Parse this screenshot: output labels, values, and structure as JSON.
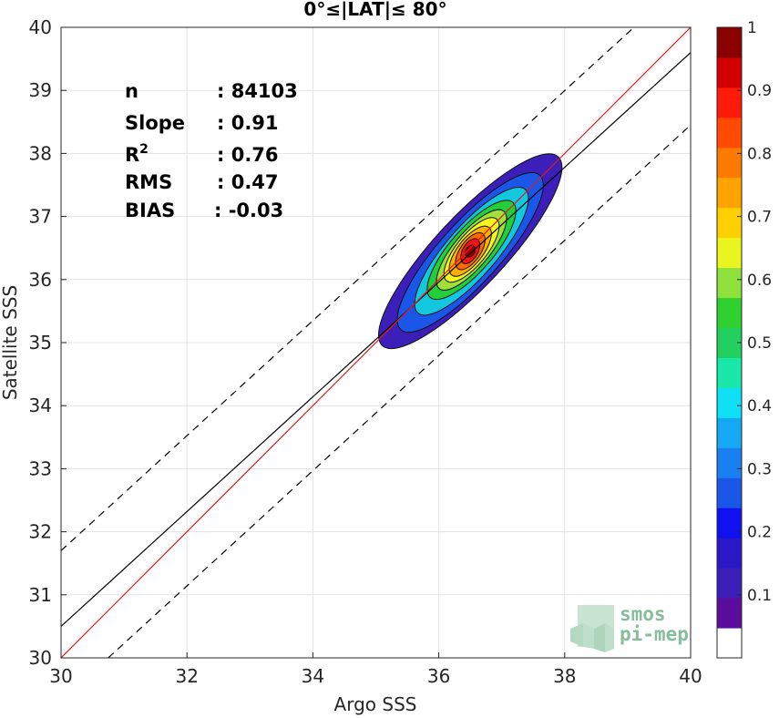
{
  "chart_data": {
    "type": "contour-scatter",
    "title": "0°≤|LAT|≤ 80°",
    "xlabel": "Argo SSS",
    "ylabel": "Satellite SSS",
    "xlim": [
      30,
      40
    ],
    "ylim": [
      30,
      40
    ],
    "xticks": [
      "30",
      "32",
      "34",
      "36",
      "38",
      "40"
    ],
    "yticks": [
      "30",
      "31",
      "32",
      "33",
      "34",
      "35",
      "36",
      "37",
      "38",
      "39",
      "40"
    ],
    "grid": true,
    "stats": [
      {
        "label": "n",
        "value": ": 84103"
      },
      {
        "label": "Slope",
        "value": ": 0.91"
      },
      {
        "label": "R",
        "sup": "2",
        "value": ": 0.76"
      },
      {
        "label": "RMS",
        "value": ": 0.47"
      },
      {
        "label": "BIAS",
        "value": ": -0.03"
      }
    ],
    "lines": {
      "one_to_one": {
        "x": [
          30,
          40
        ],
        "y": [
          30,
          40
        ],
        "color": "#e31a1c"
      },
      "regression": {
        "x": [
          30,
          40
        ],
        "y": [
          30.5,
          39.6
        ],
        "color": "#000000"
      },
      "upper_bound": {
        "x": [
          30,
          39.1
        ],
        "y": [
          31.7,
          40
        ],
        "dash": true
      },
      "lower_bound": {
        "x": [
          30.75,
          40
        ],
        "y": [
          30,
          38.45
        ],
        "dash": true
      }
    },
    "density": {
      "center": [
        36.5,
        36.45
      ],
      "levels": [
        {
          "level": 0.05,
          "half_major": 2.05,
          "half_minor": 0.56,
          "angle_deg": 47,
          "shift": [
            0.0,
            0.0
          ],
          "color": "#3b1fb8"
        },
        {
          "level": 0.2,
          "half_major": 1.65,
          "half_minor": 0.48,
          "angle_deg": 48,
          "shift": [
            0.0,
            -0.02
          ],
          "color": "#1a57e8"
        },
        {
          "level": 0.35,
          "half_major": 1.3,
          "half_minor": 0.4,
          "angle_deg": 49,
          "shift": [
            0.02,
            0.0
          ],
          "color": "#12c8e0"
        },
        {
          "level": 0.5,
          "half_major": 1.0,
          "half_minor": 0.34,
          "angle_deg": 49,
          "shift": [
            0.02,
            0.02
          ],
          "color": "#22cf3a"
        },
        {
          "level": 0.6,
          "half_major": 0.8,
          "half_minor": 0.28,
          "angle_deg": 50,
          "shift": [
            0.02,
            0.02
          ],
          "color": "#9fe03a"
        },
        {
          "level": 0.65,
          "half_major": 0.63,
          "half_minor": 0.24,
          "angle_deg": 51,
          "shift": [
            0.02,
            0.02
          ],
          "color": "#f5f51f"
        },
        {
          "level": 0.7,
          "half_major": 0.48,
          "half_minor": 0.2,
          "angle_deg": 52,
          "shift": [
            0.0,
            0.0
          ],
          "color": "#ffb000"
        },
        {
          "level": 0.8,
          "half_major": 0.34,
          "half_minor": 0.16,
          "angle_deg": 55,
          "shift": [
            0.0,
            0.0
          ],
          "color": "#ff6a00"
        },
        {
          "level": 0.9,
          "half_major": 0.22,
          "half_minor": 0.12,
          "angle_deg": 60,
          "shift": [
            0.0,
            0.0
          ],
          "color": "#f01414"
        },
        {
          "level": 1.0,
          "half_major": 0.1,
          "half_minor": 0.07,
          "angle_deg": 60,
          "shift": [
            0.0,
            0.0
          ],
          "color": "#a00000"
        }
      ]
    },
    "colorbar": {
      "ticks": [
        "0.1",
        "0.2",
        "0.3",
        "0.4",
        "0.5",
        "0.6",
        "0.7",
        "0.8",
        "0.9",
        "1"
      ],
      "colors": [
        "#ffffff",
        "#5b0e9e",
        "#3b1fb8",
        "#2a18c8",
        "#1010f0",
        "#1a57e8",
        "#1a7ff0",
        "#15a8f5",
        "#10e0f5",
        "#1ae8a8",
        "#22d060",
        "#2fd02f",
        "#8ee03a",
        "#e8f51f",
        "#ffd000",
        "#ffa300",
        "#ff7a00",
        "#ff4a00",
        "#ff1a0a",
        "#d20000",
        "#8a0000"
      ]
    }
  },
  "logo": {
    "line1": "smos",
    "line2": "pi-mep",
    "color": "#86bd9b"
  }
}
